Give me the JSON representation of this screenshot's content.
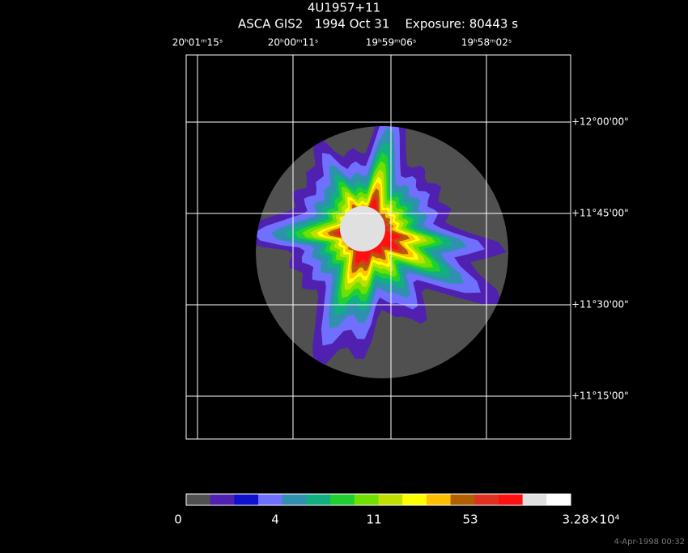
{
  "header": {
    "title": "4U1957+11",
    "subtitle": "ASCA GIS2   1994 Oct 31    Exposure: 80443 s"
  },
  "ra_labels": [
    "20ʰ01ᵐ15ˢ",
    "20ʰ00ᵐ11ˢ",
    "19ʰ59ᵐ06ˢ",
    "19ʰ58ᵐ02ˢ"
  ],
  "dec_labels": [
    "+12°00'00\"",
    "+11°45'00\"",
    "+11°30'00\"",
    "+11°15'00\""
  ],
  "colorbar": {
    "colors": [
      "#505050",
      "#5020b0",
      "#1010d0",
      "#7070ff",
      "#3090b0",
      "#10b080",
      "#20d030",
      "#70e000",
      "#c0e000",
      "#ffff00",
      "#ffc000",
      "#b06000",
      "#e03020",
      "#ff1010",
      "#e0e0e0",
      "#ffffff"
    ],
    "labels": [
      "0",
      "4",
      "11",
      "53",
      "3.28×10⁴"
    ]
  },
  "timestamp": "4-Apr-1998 00:32"
}
